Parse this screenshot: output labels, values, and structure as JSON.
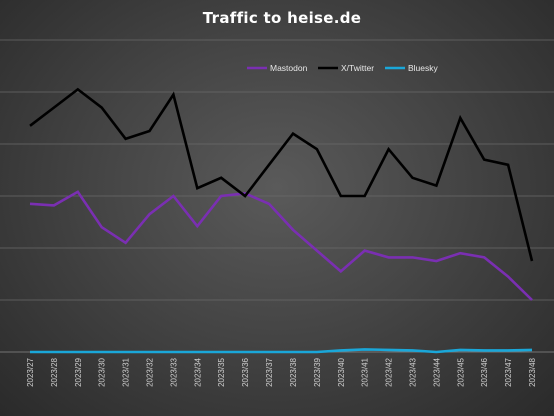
{
  "chart_data": {
    "type": "line",
    "title": "Traffic to heise.de",
    "xlabel": "",
    "ylabel": "",
    "ylim": [
      0,
      6
    ],
    "grid": true,
    "legend": "top-right",
    "categories": [
      "2023/27",
      "2023/28",
      "2023/29",
      "2023/30",
      "2023/31",
      "2023/32",
      "2023/33",
      "2023/34",
      "2023/35",
      "2023/36",
      "2023/37",
      "2023/38",
      "2023/39",
      "2023/40",
      "2023/41",
      "2023/42",
      "2023/43",
      "2023/44",
      "2023/45",
      "2023/46",
      "2023/47",
      "2023/48"
    ],
    "series": [
      {
        "name": "Mastodon",
        "color": "#7a2fb2",
        "values": [
          2.85,
          2.82,
          3.08,
          2.4,
          2.1,
          2.65,
          3.0,
          2.42,
          3.0,
          3.05,
          2.85,
          2.35,
          1.95,
          1.55,
          1.95,
          1.82,
          1.82,
          1.75,
          1.9,
          1.82,
          1.45,
          1.0
        ]
      },
      {
        "name": "X/Twitter",
        "color": "#000000",
        "values": [
          4.35,
          4.7,
          5.05,
          4.7,
          4.1,
          4.25,
          4.95,
          3.15,
          3.35,
          3.0,
          3.6,
          4.2,
          3.9,
          3.0,
          3.0,
          3.9,
          3.35,
          3.2,
          4.5,
          3.7,
          3.6,
          1.75
        ]
      },
      {
        "name": "Bluesky",
        "color": "#1aa7d9",
        "values": [
          0.0,
          0.0,
          0.0,
          0.0,
          0.0,
          0.0,
          0.0,
          0.0,
          0.0,
          0.0,
          0.0,
          0.0,
          0.0,
          0.03,
          0.05,
          0.04,
          0.03,
          0.0,
          0.04,
          0.03,
          0.03,
          0.04
        ]
      }
    ]
  }
}
